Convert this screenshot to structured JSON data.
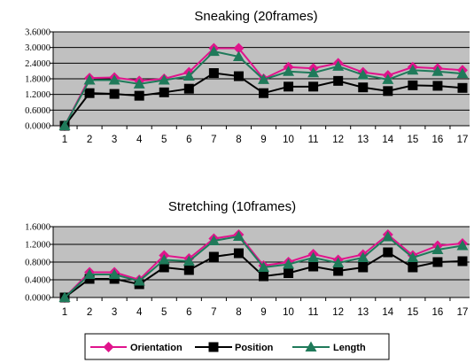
{
  "colors": {
    "plot_bg": "#c0c0c0",
    "orientation": "#e0148c",
    "position": "#000000",
    "length": "#1f7a5a"
  },
  "legend": {
    "items": [
      {
        "label": "Orientation",
        "color": "#e0148c",
        "marker": "diamond"
      },
      {
        "label": "Position",
        "color": "#000000",
        "marker": "square"
      },
      {
        "label": "Length",
        "color": "#1f7a5a",
        "marker": "triangle"
      }
    ]
  },
  "chart_data": [
    {
      "type": "line",
      "title": "Sneaking (20frames)",
      "xlabel": "",
      "ylabel": "",
      "x": [
        1,
        2,
        3,
        4,
        5,
        6,
        7,
        8,
        9,
        10,
        11,
        12,
        13,
        14,
        15,
        16,
        17
      ],
      "ylim": [
        0,
        3.6
      ],
      "yticks": [
        "0.0000",
        "0.6000",
        "1.2000",
        "1.8000",
        "2.4000",
        "3.0000",
        "3.6000"
      ],
      "grid": true,
      "series": [
        {
          "name": "Orientation",
          "values": [
            0.0,
            1.83,
            1.85,
            1.72,
            1.8,
            2.05,
            2.97,
            2.97,
            1.8,
            2.25,
            2.2,
            2.4,
            2.05,
            1.93,
            2.25,
            2.2,
            2.13
          ]
        },
        {
          "name": "Position",
          "values": [
            0.0,
            1.25,
            1.22,
            1.15,
            1.28,
            1.42,
            2.02,
            1.9,
            1.25,
            1.5,
            1.5,
            1.72,
            1.47,
            1.33,
            1.55,
            1.53,
            1.45
          ]
        },
        {
          "name": "Length",
          "values": [
            0.0,
            1.75,
            1.75,
            1.6,
            1.75,
            1.9,
            2.85,
            2.65,
            1.77,
            2.08,
            2.03,
            2.28,
            1.95,
            1.77,
            2.13,
            2.08,
            2.0
          ]
        }
      ]
    },
    {
      "type": "line",
      "title": "Stretching (10frames)",
      "xlabel": "",
      "ylabel": "",
      "x": [
        1,
        2,
        3,
        4,
        5,
        6,
        7,
        8,
        9,
        10,
        11,
        12,
        13,
        14,
        15,
        16,
        17
      ],
      "ylim": [
        0,
        1.6
      ],
      "yticks": [
        "0.0000",
        "0.4000",
        "0.8000",
        "1.2000",
        "1.6000"
      ],
      "grid": true,
      "series": [
        {
          "name": "Orientation",
          "values": [
            0.0,
            0.57,
            0.57,
            0.4,
            0.95,
            0.88,
            1.33,
            1.42,
            0.72,
            0.8,
            0.98,
            0.85,
            0.97,
            1.42,
            0.95,
            1.17,
            1.22
          ]
        },
        {
          "name": "Position",
          "values": [
            0.0,
            0.42,
            0.42,
            0.3,
            0.68,
            0.62,
            0.92,
            1.0,
            0.48,
            0.55,
            0.7,
            0.6,
            0.68,
            1.02,
            0.68,
            0.8,
            0.82
          ]
        },
        {
          "name": "Length",
          "values": [
            0.0,
            0.52,
            0.52,
            0.37,
            0.85,
            0.82,
            1.28,
            1.38,
            0.68,
            0.75,
            0.9,
            0.78,
            0.9,
            1.37,
            0.9,
            1.08,
            1.17
          ]
        }
      ]
    }
  ]
}
